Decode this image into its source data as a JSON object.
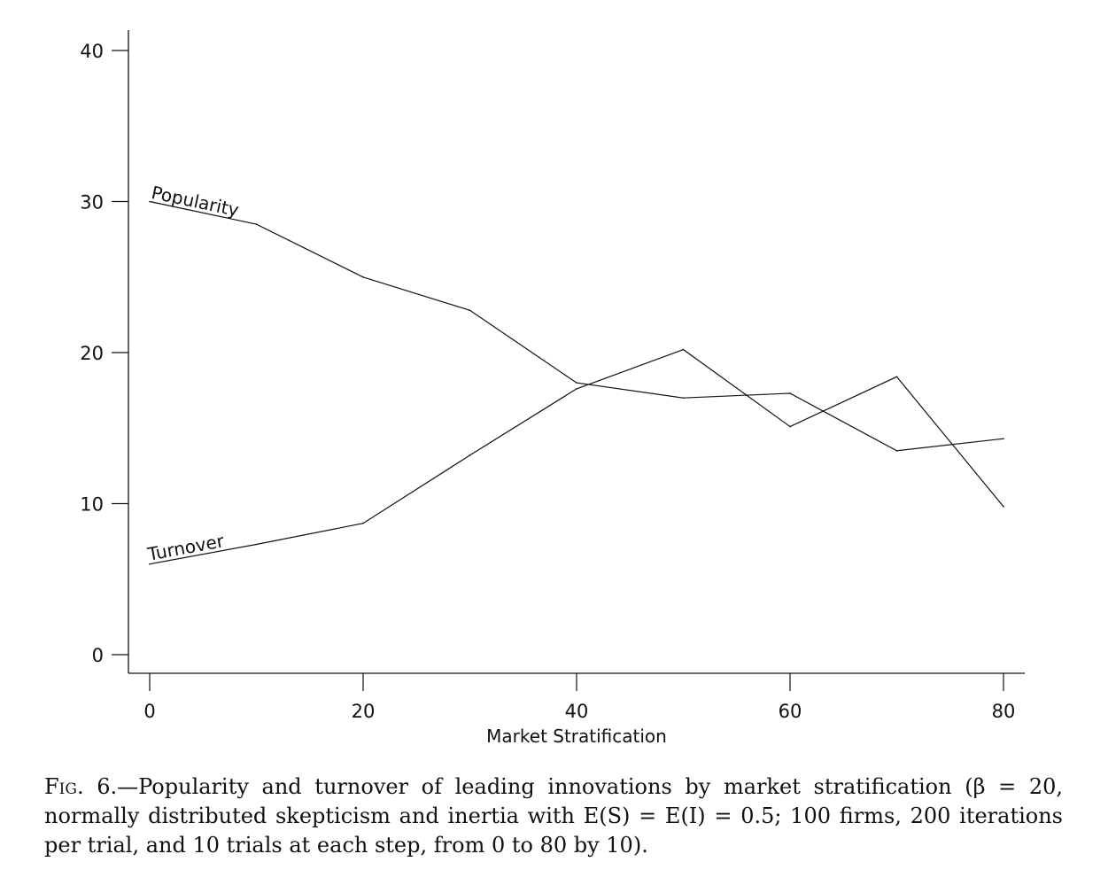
{
  "chart_data": {
    "type": "line",
    "xlabel": "Market Stratification",
    "ylabel": "",
    "xlim": [
      0,
      80
    ],
    "ylim": [
      0,
      40
    ],
    "x_ticks": [
      0,
      20,
      40,
      60,
      80
    ],
    "y_ticks": [
      0,
      10,
      20,
      30,
      40
    ],
    "grid": false,
    "legend": "none",
    "x": [
      0,
      10,
      20,
      30,
      40,
      50,
      60,
      70,
      80
    ],
    "series": [
      {
        "name": "Popularity",
        "values": [
          30.0,
          28.5,
          25.0,
          22.8,
          18.0,
          17.0,
          17.3,
          13.5,
          14.3
        ]
      },
      {
        "name": "Turnover",
        "values": [
          6.0,
          7.3,
          8.7,
          13.2,
          17.6,
          20.2,
          15.1,
          18.4,
          9.8
        ]
      }
    ],
    "line_color": "#111111"
  },
  "caption": {
    "tag": "Fig. 6.",
    "text": "—Popularity and turnover of leading innovations by market stratification (β = 20, normally distributed skepticism and inertia with E(S) = E(I) = 0.5; 100 firms, 200 iterations per trial, and 10 trials at each step, from 0 to 80 by 10).",
    "highlight_color": "#7fe3ee"
  }
}
